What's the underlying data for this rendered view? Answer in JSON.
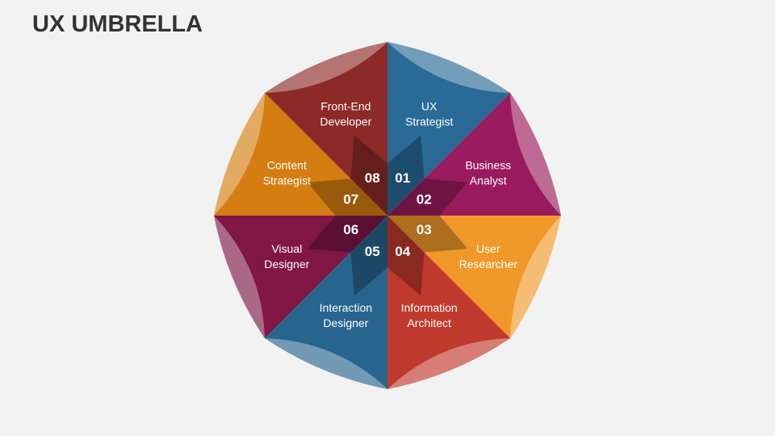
{
  "header": {
    "title": "UX UMBRELLA"
  },
  "segments": [
    {
      "number": "01",
      "label": [
        "UX",
        "Strategist"
      ],
      "color": "#296b96"
    },
    {
      "number": "02",
      "label": [
        "Business",
        "Analyst"
      ],
      "color": "#9a1b5d"
    },
    {
      "number": "03",
      "label": [
        "User",
        "Researcher"
      ],
      "color": "#f0992a"
    },
    {
      "number": "04",
      "label": [
        "Information",
        "Architect"
      ],
      "color": "#c0392d"
    },
    {
      "number": "05",
      "label": [
        "Interaction",
        "Designer"
      ],
      "color": "#27658e"
    },
    {
      "number": "06",
      "label": [
        "Visual",
        "Designer"
      ],
      "color": "#7f1646"
    },
    {
      "number": "07",
      "label": [
        "Content",
        "Strategist"
      ],
      "color": "#d47d11"
    },
    {
      "number": "08",
      "label": [
        "Front-End",
        "Developer"
      ],
      "color": "#8c2a27"
    }
  ]
}
